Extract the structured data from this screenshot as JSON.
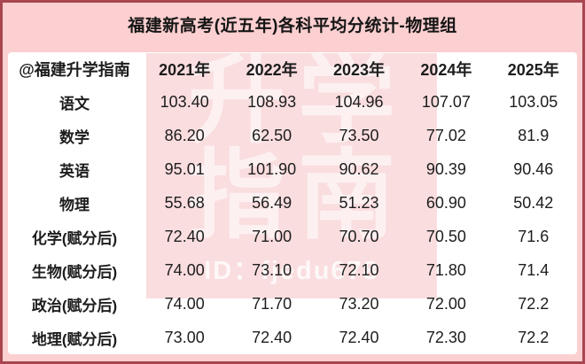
{
  "title": "福建新高考(近五年)各科平均分统计-物理组",
  "watermark": {
    "big_line1": "升学",
    "big_line2": "指南",
    "id_text": "ID：fjedu678"
  },
  "table": {
    "corner_label": "@福建升学指南",
    "year_headers": [
      "2021年",
      "2022年",
      "2023年",
      "2024年",
      "2025年"
    ],
    "rows": [
      {
        "label": "语文",
        "values": [
          "103.40",
          "108.93",
          "104.96",
          "107.07",
          "103.05"
        ]
      },
      {
        "label": "数学",
        "values": [
          "86.20",
          "62.50",
          "73.50",
          "77.02",
          "81.9"
        ]
      },
      {
        "label": "英语",
        "values": [
          "95.01",
          "101.90",
          "90.62",
          "90.39",
          "90.46"
        ]
      },
      {
        "label": "物理",
        "values": [
          "55.68",
          "56.49",
          "51.23",
          "60.90",
          "50.42"
        ]
      },
      {
        "label": "化学(赋分后)",
        "values": [
          "72.40",
          "71.00",
          "70.70",
          "70.50",
          "71.6"
        ]
      },
      {
        "label": "生物(赋分后)",
        "values": [
          "74.00",
          "73.10",
          "72.10",
          "71.80",
          "71.4"
        ]
      },
      {
        "label": "政治(赋分后)",
        "values": [
          "74.00",
          "71.70",
          "73.20",
          "72.00",
          "72.2"
        ]
      },
      {
        "label": "地理(赋分后)",
        "values": [
          "73.00",
          "72.40",
          "72.40",
          "72.30",
          "72.2"
        ]
      }
    ]
  },
  "chart_data": {
    "type": "table",
    "title": "福建新高考(近五年)各科平均分统计-物理组",
    "categories": [
      "2021年",
      "2022年",
      "2023年",
      "2024年",
      "2025年"
    ],
    "series": [
      {
        "name": "语文",
        "values": [
          103.4,
          108.93,
          104.96,
          107.07,
          103.05
        ]
      },
      {
        "name": "数学",
        "values": [
          86.2,
          62.5,
          73.5,
          77.02,
          81.9
        ]
      },
      {
        "name": "英语",
        "values": [
          95.01,
          101.9,
          90.62,
          90.39,
          90.46
        ]
      },
      {
        "name": "物理",
        "values": [
          55.68,
          56.49,
          51.23,
          60.9,
          50.42
        ]
      },
      {
        "name": "化学(赋分后)",
        "values": [
          72.4,
          71.0,
          70.7,
          70.5,
          71.6
        ]
      },
      {
        "name": "生物(赋分后)",
        "values": [
          74.0,
          73.1,
          72.1,
          71.8,
          71.4
        ]
      },
      {
        "name": "政治(赋分后)",
        "values": [
          74.0,
          71.7,
          73.2,
          72.0,
          72.2
        ]
      },
      {
        "name": "地理(赋分后)",
        "values": [
          73.0,
          72.4,
          72.4,
          72.3,
          72.2
        ]
      }
    ]
  },
  "colors": {
    "page_background": "#fccfd0",
    "border_red": "#a8454e",
    "card_background": "#ffffff",
    "watermark_pink": "#fadee0",
    "text_dark": "#1d1d1d"
  }
}
